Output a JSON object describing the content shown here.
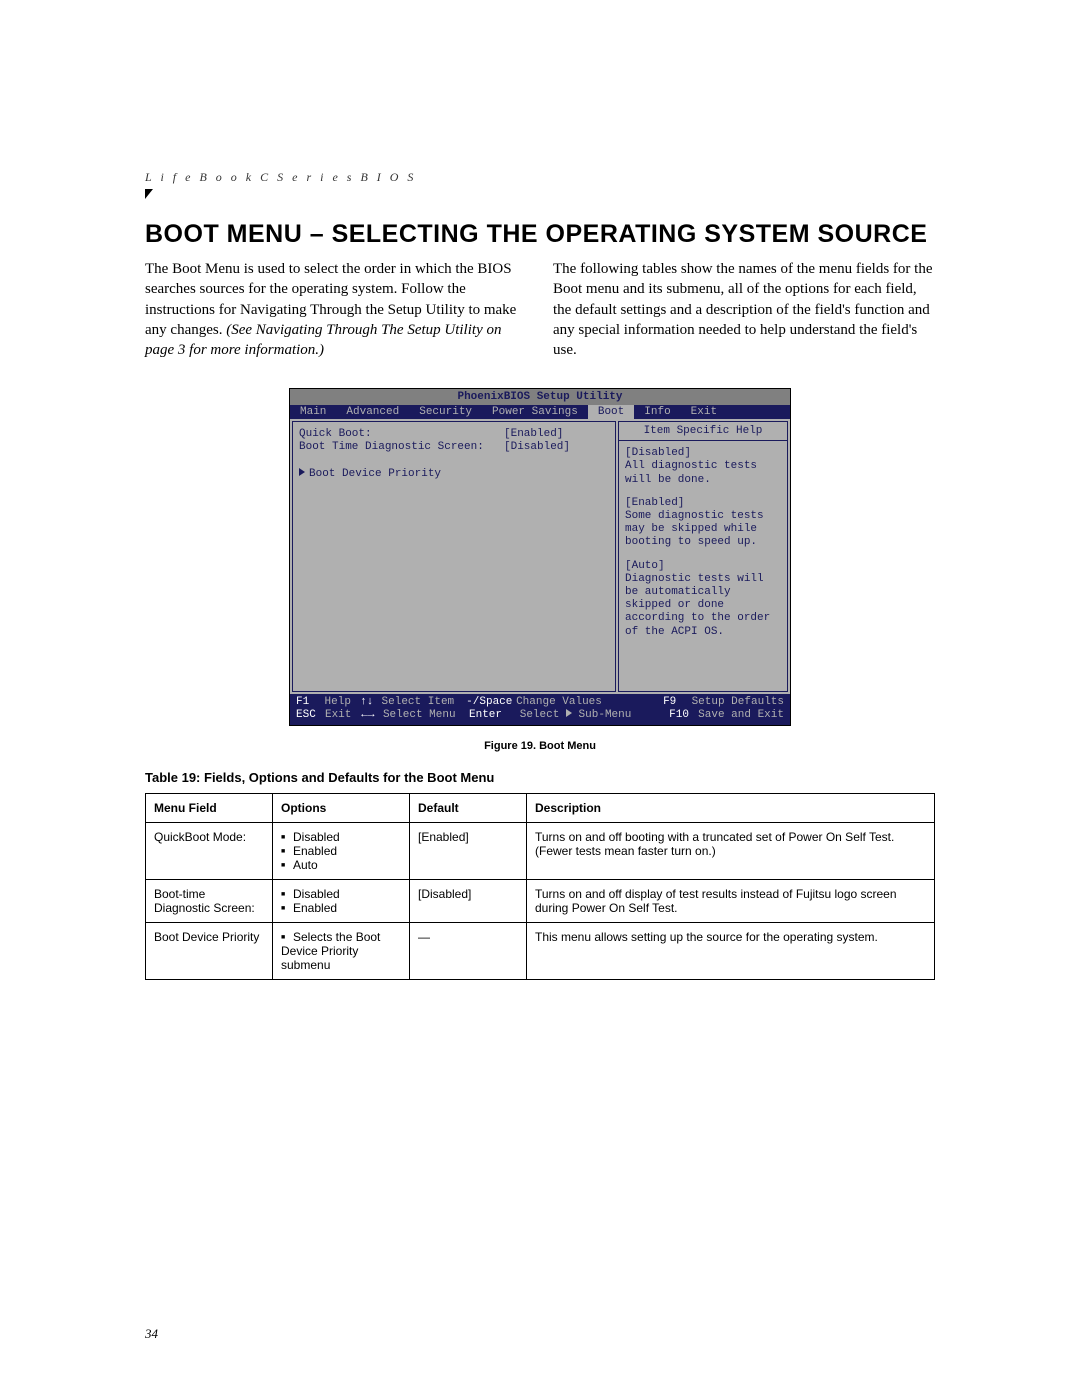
{
  "header": {
    "running_head": "L i f e B o o k   C   S e r i e s   B I O S",
    "heading": "BOOT MENU – SELECTING THE OPERATING SYSTEM SOURCE"
  },
  "paragraphs": {
    "left": "The Boot Menu is used to select the order in which the BIOS searches sources for the operating system. Follow the instructions for Navigating Through the Setup Utility to make any changes. ",
    "left_italic": "(See Navigating Through The Setup Utility on page 3 for more information.)",
    "right": "The following tables show the names of the menu fields for the Boot menu and its submenu, all of the options for each field, the default settings and a description of the field's function and any special information needed to help understand the field's use."
  },
  "bios": {
    "title": "PhoenixBIOS Setup Utility",
    "tabs": [
      "Main",
      "Advanced",
      "Security",
      "Power Savings",
      "Boot",
      "Info",
      "Exit"
    ],
    "active_tab_index": 4,
    "rows": [
      {
        "label": "Quick Boot:",
        "value": "[Enabled]"
      },
      {
        "label": "Boot Time Diagnostic Screen:",
        "value": "[Disabled]"
      }
    ],
    "submenu_item": "Boot Device Priority",
    "help": {
      "title": "Item Specific Help",
      "sections": [
        "[Disabled]\nAll diagnostic tests will be done.",
        "[Enabled]\nSome diagnostic tests may be skipped while booting to speed up.",
        "[Auto]\nDiagnostic tests will be automatically skipped or done according to the order of the ACPI OS."
      ]
    },
    "footer": {
      "row1": [
        {
          "key": "F1",
          "label": "Help"
        },
        {
          "key": "↑↓",
          "label": "Select Item"
        },
        {
          "key": "-/Space",
          "label": "Change Values"
        },
        {
          "key": "F9",
          "label": "Setup Defaults"
        }
      ],
      "row2": [
        {
          "key": "ESC",
          "label": "Exit"
        },
        {
          "key": "←→",
          "label": "Select Menu"
        },
        {
          "key": "Enter",
          "label": "Select ▶ Sub-Menu"
        },
        {
          "key": "F10",
          "label": "Save and Exit"
        }
      ]
    }
  },
  "figure_caption": "Figure 19.  Boot Menu",
  "table": {
    "title": "Table 19: Fields, Options and Defaults for the Boot Menu",
    "headers": [
      "Menu Field",
      "Options",
      "Default",
      "Description"
    ],
    "rows": [
      {
        "field": "QuickBoot Mode:",
        "options": [
          "Disabled",
          "Enabled",
          "Auto"
        ],
        "default": "[Enabled]",
        "description": "Turns on and off booting with a truncated set of Power On Self Test. (Fewer tests mean faster turn on.)"
      },
      {
        "field": "Boot-time Diagnostic Screen:",
        "options": [
          "Disabled",
          "Enabled"
        ],
        "default": "[Disabled]",
        "description": "Turns on and off display of test results instead of Fujitsu logo screen during Power On Self Test."
      },
      {
        "field": "Boot Device Priority",
        "options": [
          "Selects the Boot Device Priority submenu"
        ],
        "default": "—",
        "description": "This menu allows setting up the source for the operating system."
      }
    ]
  },
  "page_number": "34",
  "colors": {
    "bios_dark": "#1a1a5c",
    "bios_gray": "#b0b0b0",
    "bios_midgray": "#808080"
  }
}
